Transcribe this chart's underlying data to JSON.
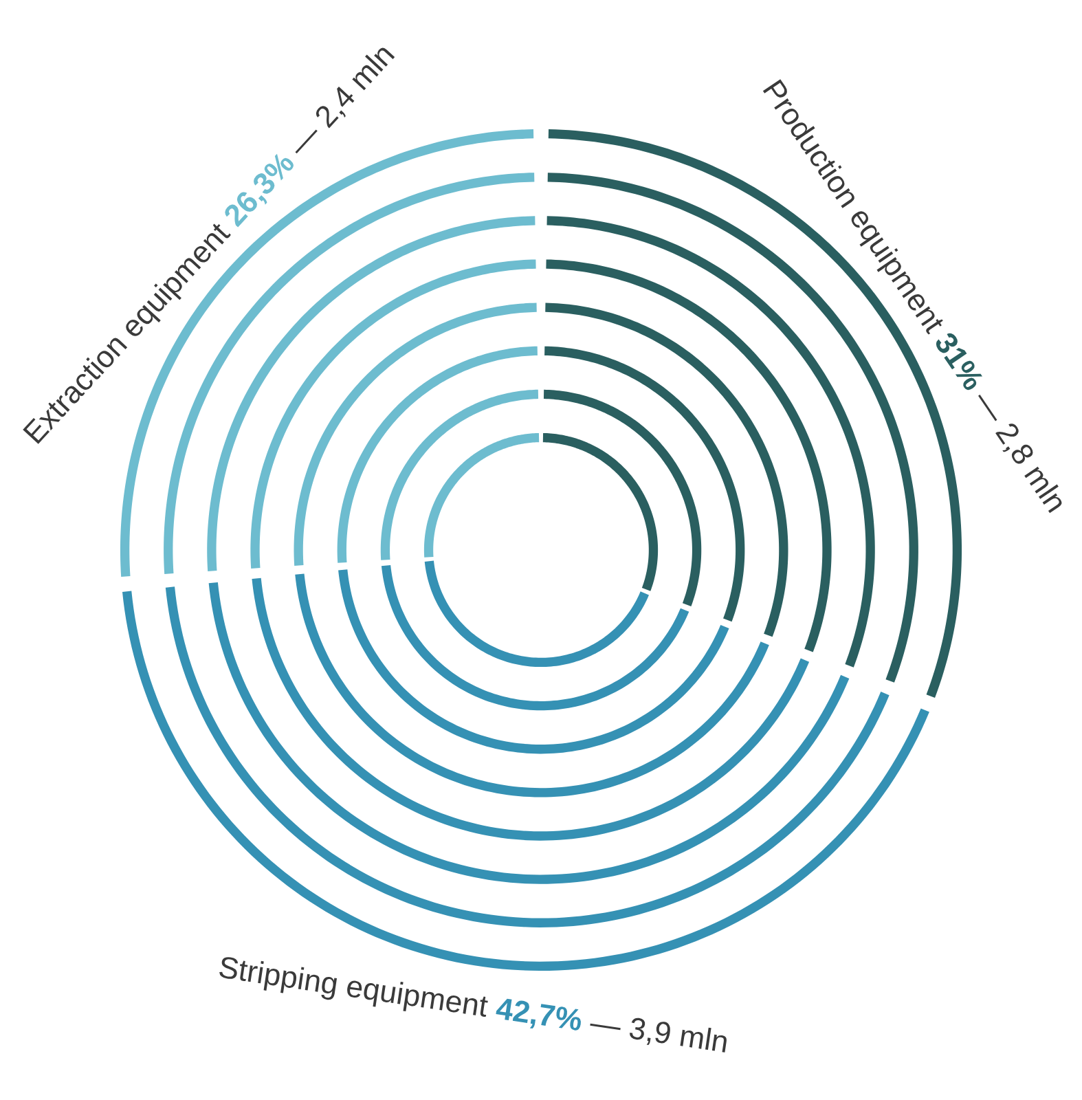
{
  "chart_data": {
    "type": "donut",
    "categories": [
      "Production equipment",
      "Stripping equipment",
      "Extraction equipment"
    ],
    "colors": [
      "#2a5f60",
      "#3591b4",
      "#6dbccf"
    ],
    "series": [
      {
        "values": [
          31,
          42.7,
          26.3
        ]
      },
      {
        "values": [
          31,
          42.7,
          26.3
        ]
      },
      {
        "values": [
          31,
          42.7,
          26.3
        ]
      },
      {
        "values": [
          31,
          42.7,
          26.3
        ]
      },
      {
        "values": [
          31,
          42.7,
          26.3
        ]
      },
      {
        "values": [
          31,
          42.7,
          26.3
        ]
      },
      {
        "values": [
          31,
          42.7,
          26.3
        ]
      },
      {
        "values": [
          31,
          42.7,
          26.3
        ]
      }
    ],
    "value_labels": [
      "31%",
      "42,7%",
      "26,3%"
    ],
    "annotations": [
      "— 2,8 mln",
      "— 3,9 mln",
      "— 2,4 mln"
    ]
  }
}
